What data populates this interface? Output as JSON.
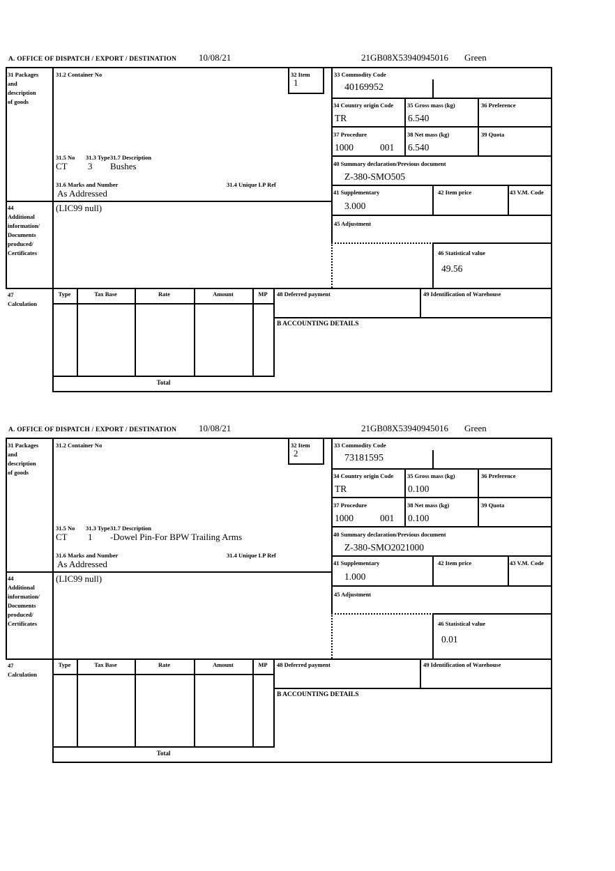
{
  "form": {
    "header": {
      "section_label": "A.  OFFICE OF DISPATCH / EXPORT / DESTINATION",
      "date": "10/08/21",
      "entry_no": "21GB08X53940945016",
      "route": "Green"
    },
    "labels": {
      "box31": [
        "31 Packages",
        "and",
        "description",
        "of goods"
      ],
      "box31_2": "31.2 Container No",
      "box32": "32 Item",
      "box33": "33 Commodity Code",
      "box34": "34 Country origin Code",
      "box35": "35 Gross mass (kg)",
      "box36": "36 Preference",
      "box37": "37 Procedure",
      "box38": "38 Net mass (kg)",
      "box39": "39 Quota",
      "box40": "40 Summary declaration/Previous document",
      "box31_5": "31.5 No",
      "box31_3": "31.3 Type",
      "box31_7": "31.7 Description",
      "box31_6": "31.6 Marks and Number",
      "box31_4": "31.4 Unique LP Ref",
      "box41": "41 Supplementary",
      "box42": "42 Item price",
      "box43": "43 V.M. Code",
      "box44": [
        "44",
        "Additional",
        "information/",
        "Documents",
        "produced/",
        "Certificates"
      ],
      "box45": "45 Adjustment",
      "box46": "46 Statistical value",
      "box47": [
        "47",
        "Calculation"
      ],
      "calc_type": "Type",
      "calc_tax_base": "Tax Base",
      "calc_rate": "Rate",
      "calc_amount": "Amount",
      "calc_mp": "MP",
      "box48": "48 Deferred payment",
      "box49": "49 Identification of Warehouse",
      "accounting": "B ACCOUNTING DETAILS",
      "total": "Total"
    },
    "sections": [
      {
        "item_no": "1",
        "commodity_code": "40169952",
        "origin_code": "TR",
        "gross_mass": "6.540",
        "procedure_1": "1000",
        "procedure_2": "001",
        "net_mass": "6.540",
        "summary_declaration": "Z-380-SMO505",
        "package_no": "CT",
        "package_type": "3",
        "description": "Bushes",
        "marks": "As Addressed",
        "supplementary": "3.000",
        "additional_info": "(LIC99 null)",
        "statistical_value": "49.56"
      },
      {
        "item_no": "2",
        "commodity_code": "73181595",
        "origin_code": "TR",
        "gross_mass": "0.100",
        "procedure_1": "1000",
        "procedure_2": "001",
        "net_mass": "0.100",
        "summary_declaration": "Z-380-SMO2021000",
        "package_no": "CT",
        "package_type": "1",
        "description": "-Dowel Pin-For BPW Trailing Arms",
        "marks": "As Addressed",
        "supplementary": "1.000",
        "additional_info": "(LIC99 null)",
        "statistical_value": "0.01"
      }
    ],
    "colors": {
      "line": "#000000",
      "background": "#ffffff",
      "text": "#000000"
    }
  }
}
